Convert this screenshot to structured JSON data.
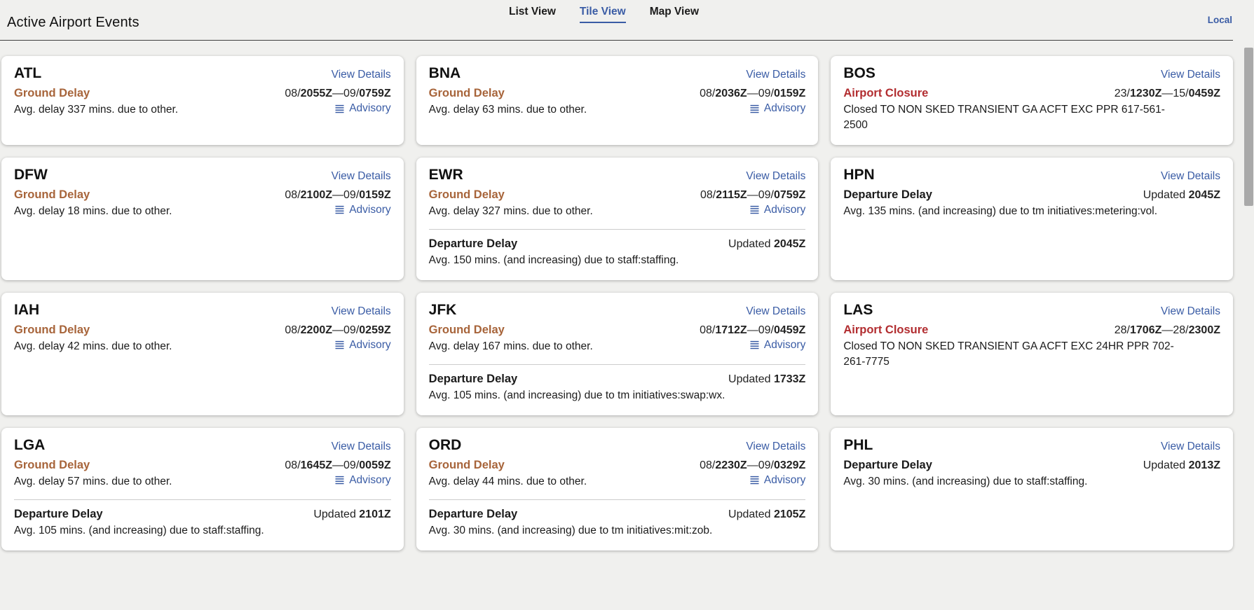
{
  "page": {
    "title": "Active Airport Events"
  },
  "tabs": [
    {
      "label": "List View",
      "active": false
    },
    {
      "label": "Tile View",
      "active": true
    },
    {
      "label": "Map View",
      "active": false
    }
  ],
  "timezone": {
    "label": "Local"
  },
  "labels": {
    "view_details": "View Details",
    "advisory": "Advisory"
  },
  "colors": {
    "link": "#3a5ca5",
    "ground_delay": "#a7643a",
    "airport_closure": "#b22d30",
    "departure_delay": "#1b1b1b",
    "background": "#f0f0ee"
  },
  "cards": [
    {
      "code": "ATL",
      "events": [
        {
          "kind": "ground",
          "type": "Ground Delay",
          "time": [
            {
              "t": "08/",
              "b": false
            },
            {
              "t": "2055Z",
              "b": true
            },
            {
              "t": "—09/",
              "b": false
            },
            {
              "t": "0759Z",
              "b": true
            }
          ],
          "desc": "Avg. delay 337 mins. due to other.",
          "advisory": true
        }
      ]
    },
    {
      "code": "BNA",
      "events": [
        {
          "kind": "ground",
          "type": "Ground Delay",
          "time": [
            {
              "t": "08/",
              "b": false
            },
            {
              "t": "2036Z",
              "b": true
            },
            {
              "t": "—09/",
              "b": false
            },
            {
              "t": "0159Z",
              "b": true
            }
          ],
          "desc": "Avg. delay 63 mins. due to other.",
          "advisory": true
        }
      ]
    },
    {
      "code": "BOS",
      "events": [
        {
          "kind": "closure",
          "type": "Airport Closure",
          "time": [
            {
              "t": "23/",
              "b": false
            },
            {
              "t": "1230Z",
              "b": true
            },
            {
              "t": "—15/",
              "b": false
            },
            {
              "t": "0459Z",
              "b": true
            }
          ],
          "desc": "Closed TO NON SKED TRANSIENT GA ACFT EXC PPR 617-561-2500",
          "advisory": false
        }
      ]
    },
    {
      "code": "DFW",
      "events": [
        {
          "kind": "ground",
          "type": "Ground Delay",
          "time": [
            {
              "t": "08/",
              "b": false
            },
            {
              "t": "2100Z",
              "b": true
            },
            {
              "t": "—09/",
              "b": false
            },
            {
              "t": "0159Z",
              "b": true
            }
          ],
          "desc": "Avg. delay 18 mins. due to other.",
          "advisory": true
        }
      ]
    },
    {
      "code": "EWR",
      "events": [
        {
          "kind": "ground",
          "type": "Ground Delay",
          "time": [
            {
              "t": "08/",
              "b": false
            },
            {
              "t": "2115Z",
              "b": true
            },
            {
              "t": "—09/",
              "b": false
            },
            {
              "t": "0759Z",
              "b": true
            }
          ],
          "desc": "Avg. delay 327 mins. due to other.",
          "advisory": true
        },
        {
          "kind": "departure",
          "type": "Departure Delay",
          "time": [
            {
              "t": "Updated ",
              "b": false
            },
            {
              "t": "2045Z",
              "b": true
            }
          ],
          "desc": "Avg. 150 mins. (and increasing) due to staff:staffing.",
          "advisory": false
        }
      ]
    },
    {
      "code": "HPN",
      "events": [
        {
          "kind": "departure",
          "type": "Departure Delay",
          "time": [
            {
              "t": "Updated ",
              "b": false
            },
            {
              "t": "2045Z",
              "b": true
            }
          ],
          "desc": "Avg. 135 mins. (and increasing) due to tm initiatives:metering:vol.",
          "advisory": false
        }
      ]
    },
    {
      "code": "IAH",
      "events": [
        {
          "kind": "ground",
          "type": "Ground Delay",
          "time": [
            {
              "t": "08/",
              "b": false
            },
            {
              "t": "2200Z",
              "b": true
            },
            {
              "t": "—09/",
              "b": false
            },
            {
              "t": "0259Z",
              "b": true
            }
          ],
          "desc": "Avg. delay 42 mins. due to other.",
          "advisory": true
        }
      ]
    },
    {
      "code": "JFK",
      "events": [
        {
          "kind": "ground",
          "type": "Ground Delay",
          "time": [
            {
              "t": "08/",
              "b": false
            },
            {
              "t": "1712Z",
              "b": true
            },
            {
              "t": "—09/",
              "b": false
            },
            {
              "t": "0459Z",
              "b": true
            }
          ],
          "desc": "Avg. delay 167 mins. due to other.",
          "advisory": true
        },
        {
          "kind": "departure",
          "type": "Departure Delay",
          "time": [
            {
              "t": "Updated ",
              "b": false
            },
            {
              "t": "1733Z",
              "b": true
            }
          ],
          "desc": "Avg. 105 mins. (and increasing) due to tm initiatives:swap:wx.",
          "advisory": false
        }
      ]
    },
    {
      "code": "LAS",
      "events": [
        {
          "kind": "closure",
          "type": "Airport Closure",
          "time": [
            {
              "t": "28/",
              "b": false
            },
            {
              "t": "1706Z",
              "b": true
            },
            {
              "t": "—28/",
              "b": false
            },
            {
              "t": "2300Z",
              "b": true
            }
          ],
          "desc": "Closed TO NON SKED TRANSIENT GA ACFT EXC 24HR PPR 702-261-7775",
          "advisory": false
        }
      ]
    },
    {
      "code": "LGA",
      "events": [
        {
          "kind": "ground",
          "type": "Ground Delay",
          "time": [
            {
              "t": "08/",
              "b": false
            },
            {
              "t": "1645Z",
              "b": true
            },
            {
              "t": "—09/",
              "b": false
            },
            {
              "t": "0059Z",
              "b": true
            }
          ],
          "desc": "Avg. delay 57 mins. due to other.",
          "advisory": true
        },
        {
          "kind": "departure",
          "type": "Departure Delay",
          "time": [
            {
              "t": "Updated ",
              "b": false
            },
            {
              "t": "2101Z",
              "b": true
            }
          ],
          "desc": "Avg. 105 mins. (and increasing) due to staff:staffing.",
          "advisory": false
        }
      ]
    },
    {
      "code": "ORD",
      "events": [
        {
          "kind": "ground",
          "type": "Ground Delay",
          "time": [
            {
              "t": "08/",
              "b": false
            },
            {
              "t": "2230Z",
              "b": true
            },
            {
              "t": "—09/",
              "b": false
            },
            {
              "t": "0329Z",
              "b": true
            }
          ],
          "desc": "Avg. delay 44 mins. due to other.",
          "advisory": true
        },
        {
          "kind": "departure",
          "type": "Departure Delay",
          "time": [
            {
              "t": "Updated ",
              "b": false
            },
            {
              "t": "2105Z",
              "b": true
            }
          ],
          "desc": "Avg. 30 mins. (and increasing) due to tm initiatives:mit:zob.",
          "advisory": false
        }
      ]
    },
    {
      "code": "PHL",
      "events": [
        {
          "kind": "departure",
          "type": "Departure Delay",
          "time": [
            {
              "t": "Updated ",
              "b": false
            },
            {
              "t": "2013Z",
              "b": true
            }
          ],
          "desc": "Avg. 30 mins. (and increasing) due to staff:staffing.",
          "advisory": false
        }
      ]
    }
  ]
}
